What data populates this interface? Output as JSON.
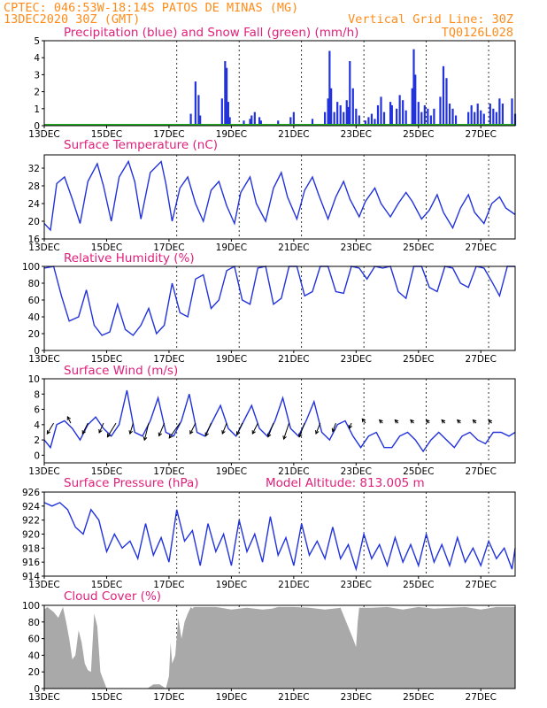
{
  "header": {
    "line1": "CPTEC:  046:53W-18:14S  PATOS DE MINAS (MG)",
    "line2_left": "13DEC2020 30Z (GMT)",
    "line2_right": "Vertical Grid Line: 30Z",
    "code": "TQ0126L028"
  },
  "x_axis": {
    "range_days": [
      13.0,
      28.1
    ],
    "tick_labels": [
      "13DEC",
      "15DEC",
      "17DEC",
      "19DEC",
      "21DEC",
      "23DEC",
      "25DEC",
      "27DEC"
    ],
    "tick_days": [
      13,
      15,
      17,
      19,
      21,
      23,
      25,
      27
    ],
    "vertical_grid_days": [
      17.25,
      19.25,
      21.25,
      23.25,
      25.25,
      27.25
    ]
  },
  "colors": {
    "series": "#2233dd",
    "snow": "#22aa22",
    "cloud": "#a9a9a9",
    "title": "#e0207a",
    "header": "#ff8c1a"
  },
  "chart_data": [
    {
      "id": "precip",
      "type": "bar",
      "title": "Precipitation (blue) and Snow Fall (green) (mm/h)",
      "ylim": [
        0,
        5
      ],
      "yticks": [
        0,
        1,
        2,
        3,
        4,
        5
      ],
      "x_days": [
        17.7,
        17.85,
        17.95,
        18.0,
        18.7,
        18.8,
        18.85,
        18.9,
        18.95,
        19.4,
        19.6,
        19.65,
        19.75,
        19.9,
        19.95,
        20.5,
        20.9,
        21.0,
        21.6,
        22.0,
        22.1,
        22.15,
        22.2,
        22.3,
        22.4,
        22.5,
        22.6,
        22.7,
        22.75,
        22.8,
        22.9,
        23.0,
        23.1,
        23.3,
        23.4,
        23.5,
        23.6,
        23.7,
        23.8,
        23.9,
        24.1,
        24.15,
        24.3,
        24.4,
        24.5,
        24.6,
        24.8,
        24.85,
        24.9,
        25.0,
        25.1,
        25.2,
        25.3,
        25.4,
        25.5,
        25.7,
        25.8,
        25.9,
        26.0,
        26.1,
        26.2,
        26.6,
        26.7,
        26.8,
        26.9,
        27.0,
        27.1,
        27.3,
        27.4,
        27.5,
        27.6,
        27.7,
        28.0,
        28.1
      ],
      "values": [
        0.7,
        2.6,
        1.8,
        0.6,
        1.6,
        3.8,
        3.4,
        1.4,
        0.5,
        0.3,
        0.4,
        0.6,
        0.8,
        0.5,
        0.3,
        0.3,
        0.5,
        0.8,
        0.4,
        0.8,
        1.6,
        4.4,
        2.2,
        0.8,
        1.4,
        1.2,
        0.8,
        1.5,
        1.1,
        3.8,
        2.2,
        1.0,
        0.6,
        0.3,
        0.5,
        0.7,
        0.4,
        1.2,
        1.7,
        0.8,
        1.4,
        1.2,
        1.0,
        1.8,
        1.5,
        0.9,
        2.2,
        4.5,
        3.0,
        1.4,
        0.8,
        1.2,
        1.0,
        0.6,
        1.0,
        1.7,
        3.5,
        2.8,
        1.3,
        1.0,
        0.6,
        0.8,
        1.2,
        0.8,
        1.3,
        0.9,
        0.7,
        1.3,
        1.0,
        0.8,
        1.6,
        1.3,
        1.6,
        0.7
      ],
      "snow_values": "zero"
    },
    {
      "id": "temp",
      "type": "line",
      "title": "Surface Temperature (nC)",
      "ylim": [
        16,
        35
      ],
      "yticks": [
        16,
        20,
        24,
        28,
        32
      ],
      "x_days": [
        13.0,
        13.2,
        13.4,
        13.65,
        13.9,
        14.15,
        14.4,
        14.7,
        14.9,
        15.15,
        15.4,
        15.7,
        15.9,
        16.1,
        16.4,
        16.75,
        16.9,
        17.1,
        17.35,
        17.6,
        17.85,
        18.1,
        18.35,
        18.6,
        18.85,
        19.1,
        19.3,
        19.6,
        19.8,
        20.1,
        20.35,
        20.6,
        20.8,
        21.1,
        21.35,
        21.6,
        21.8,
        22.1,
        22.35,
        22.6,
        22.8,
        23.1,
        23.3,
        23.6,
        23.8,
        24.1,
        24.35,
        24.6,
        24.8,
        25.1,
        25.35,
        25.6,
        25.8,
        26.1,
        26.35,
        26.6,
        26.8,
        27.1,
        27.35,
        27.6,
        27.8,
        28.0,
        28.1
      ],
      "values": [
        19.5,
        18.0,
        28.5,
        30.0,
        25.0,
        19.5,
        29.0,
        33.0,
        28.0,
        20.0,
        30.0,
        33.5,
        29.0,
        20.5,
        31.0,
        33.5,
        28.5,
        20.0,
        27.5,
        30.0,
        24.0,
        20.0,
        27.0,
        29.0,
        23.5,
        19.5,
        26.5,
        30.0,
        24.0,
        20.0,
        27.5,
        31.0,
        25.5,
        20.5,
        27.0,
        30.0,
        26.0,
        20.5,
        25.5,
        29.0,
        25.0,
        21.0,
        24.5,
        27.5,
        24.0,
        21.0,
        24.0,
        26.5,
        24.5,
        20.5,
        22.5,
        26.0,
        22.0,
        18.5,
        23.0,
        26.0,
        22.0,
        19.5,
        24.0,
        25.5,
        23.0,
        22.0,
        21.5
      ]
    },
    {
      "id": "rh",
      "type": "line",
      "title": "Relative Humidity (%)",
      "ylim": [
        0,
        100
      ],
      "yticks": [
        0,
        20,
        40,
        60,
        80,
        100
      ],
      "x_days": [
        13.0,
        13.3,
        13.55,
        13.8,
        14.1,
        14.35,
        14.6,
        14.85,
        15.1,
        15.35,
        15.6,
        15.85,
        16.1,
        16.35,
        16.6,
        16.85,
        17.1,
        17.35,
        17.6,
        17.85,
        18.1,
        18.35,
        18.6,
        18.85,
        19.1,
        19.35,
        19.6,
        19.85,
        20.1,
        20.35,
        20.6,
        20.85,
        21.1,
        21.35,
        21.6,
        21.85,
        22.1,
        22.35,
        22.6,
        22.85,
        23.1,
        23.35,
        23.6,
        23.85,
        24.1,
        24.35,
        24.6,
        24.85,
        25.1,
        25.35,
        25.6,
        25.85,
        26.1,
        26.35,
        26.6,
        26.85,
        27.1,
        27.35,
        27.6,
        27.85,
        28.0,
        28.1
      ],
      "values": [
        98,
        100,
        65,
        35,
        40,
        72,
        30,
        18,
        22,
        55,
        25,
        18,
        30,
        50,
        20,
        30,
        80,
        45,
        40,
        85,
        90,
        50,
        60,
        95,
        100,
        60,
        55,
        98,
        100,
        55,
        62,
        100,
        100,
        65,
        70,
        100,
        100,
        70,
        68,
        100,
        98,
        85,
        100,
        98,
        100,
        70,
        62,
        100,
        100,
        75,
        70,
        100,
        98,
        80,
        75,
        100,
        98,
        82,
        65,
        100,
        100,
        100
      ]
    },
    {
      "id": "wind",
      "type": "line",
      "title": "Surface Wind (m/s)",
      "ylim": [
        -1,
        10
      ],
      "yticks": [
        0,
        2,
        4,
        6,
        8,
        10
      ],
      "x_days": [
        13.0,
        13.2,
        13.4,
        13.65,
        13.9,
        14.15,
        14.4,
        14.65,
        14.9,
        15.15,
        15.4,
        15.65,
        15.9,
        16.15,
        16.4,
        16.65,
        16.9,
        17.15,
        17.4,
        17.65,
        17.9,
        18.15,
        18.4,
        18.65,
        18.9,
        19.15,
        19.4,
        19.65,
        19.9,
        20.15,
        20.4,
        20.65,
        20.9,
        21.15,
        21.4,
        21.65,
        21.9,
        22.15,
        22.4,
        22.65,
        22.9,
        23.15,
        23.4,
        23.65,
        23.9,
        24.15,
        24.4,
        24.65,
        24.9,
        25.15,
        25.4,
        25.65,
        25.9,
        26.15,
        26.4,
        26.65,
        26.9,
        27.15,
        27.4,
        27.65,
        27.9,
        28.1
      ],
      "values": [
        2,
        1,
        4,
        4.5,
        3.5,
        2,
        4,
        5,
        3.5,
        2.5,
        4,
        8.5,
        3,
        2.5,
        4.5,
        7.5,
        3,
        2.5,
        4.5,
        8,
        3,
        2.5,
        4.5,
        6.5,
        3.5,
        2.5,
        4.5,
        6.5,
        3.5,
        2.5,
        4.5,
        7.5,
        3.5,
        2.5,
        4.5,
        7,
        3,
        2,
        4,
        4.5,
        2.5,
        1,
        2.5,
        3,
        1,
        1,
        2.5,
        3,
        2,
        0.5,
        2,
        3,
        2,
        1,
        2.5,
        3,
        2,
        1.5,
        3,
        3,
        2.5,
        3
      ],
      "arrows": [
        {
          "x": 13.3,
          "u": -0.6,
          "v": -1.0
        },
        {
          "x": 13.85,
          "u": -0.3,
          "v": 0.6
        },
        {
          "x": 14.4,
          "u": -0.5,
          "v": -1.0
        },
        {
          "x": 14.9,
          "u": -0.4,
          "v": -0.9
        },
        {
          "x": 15.3,
          "u": -0.8,
          "v": -1.3
        },
        {
          "x": 15.85,
          "u": -0.3,
          "v": -1.0
        },
        {
          "x": 16.35,
          "u": -0.4,
          "v": -1.6
        },
        {
          "x": 16.85,
          "u": -0.5,
          "v": -1.2
        },
        {
          "x": 17.35,
          "u": -1.0,
          "v": -1.4
        },
        {
          "x": 17.85,
          "u": -0.5,
          "v": -1.0
        },
        {
          "x": 18.35,
          "u": -0.5,
          "v": -1.2
        },
        {
          "x": 18.85,
          "u": -0.4,
          "v": -1.0
        },
        {
          "x": 19.35,
          "u": -0.5,
          "v": -1.1
        },
        {
          "x": 19.85,
          "u": -0.5,
          "v": -1.0
        },
        {
          "x": 20.35,
          "u": -0.5,
          "v": -1.3
        },
        {
          "x": 20.85,
          "u": -0.5,
          "v": -1.5
        },
        {
          "x": 21.35,
          "u": -0.5,
          "v": -1.3
        },
        {
          "x": 21.85,
          "u": -0.4,
          "v": -1.0
        },
        {
          "x": 22.35,
          "u": -0.3,
          "v": -0.8
        },
        {
          "x": 22.85,
          "u": -0.2,
          "v": -0.5
        },
        {
          "x": 23.3,
          "u": -0.3,
          "v": 0.4
        },
        {
          "x": 23.85,
          "u": -0.3,
          "v": 0.3
        },
        {
          "x": 24.35,
          "u": -0.3,
          "v": 0.3
        },
        {
          "x": 24.85,
          "u": -0.3,
          "v": 0.3
        },
        {
          "x": 25.35,
          "u": -0.3,
          "v": 0.3
        },
        {
          "x": 25.85,
          "u": -0.3,
          "v": 0.3
        },
        {
          "x": 26.35,
          "u": -0.3,
          "v": 0.3
        },
        {
          "x": 26.85,
          "u": -0.3,
          "v": 0.3
        },
        {
          "x": 27.35,
          "u": -0.3,
          "v": 0.3
        }
      ]
    },
    {
      "id": "press",
      "type": "line",
      "title": "Surface Pressure (hPa)",
      "annotation": "Model Altitude: 813.005 m",
      "ylim": [
        914,
        926
      ],
      "yticks": [
        914,
        916,
        918,
        920,
        922,
        924,
        926
      ],
      "x_days": [
        13.0,
        13.25,
        13.5,
        13.75,
        14.0,
        14.25,
        14.5,
        14.75,
        15.0,
        15.25,
        15.5,
        15.75,
        16.0,
        16.25,
        16.5,
        16.75,
        17.0,
        17.25,
        17.5,
        17.75,
        18.0,
        18.25,
        18.5,
        18.75,
        19.0,
        19.25,
        19.5,
        19.75,
        20.0,
        20.25,
        20.5,
        20.75,
        21.0,
        21.25,
        21.5,
        21.75,
        22.0,
        22.25,
        22.5,
        22.75,
        23.0,
        23.25,
        23.5,
        23.75,
        24.0,
        24.25,
        24.5,
        24.75,
        25.0,
        25.25,
        25.5,
        25.75,
        26.0,
        26.25,
        26.5,
        26.75,
        27.0,
        27.25,
        27.5,
        27.75,
        28.0,
        28.1
      ],
      "values": [
        924.5,
        924,
        924.5,
        923.5,
        921,
        920,
        923.5,
        922,
        917.5,
        920,
        918,
        919,
        916.5,
        921.5,
        917,
        919.5,
        916,
        923.5,
        919,
        920.5,
        915.5,
        921.5,
        917.5,
        920,
        915.5,
        922,
        917.5,
        920,
        916,
        922.5,
        917,
        919.5,
        915.5,
        921.5,
        917,
        919,
        916.5,
        921,
        916.5,
        918.5,
        915,
        920,
        916.5,
        918.5,
        915.5,
        919.5,
        916,
        918.5,
        915.5,
        920,
        916,
        918.5,
        915.5,
        919.5,
        916,
        918,
        915.5,
        919,
        916.5,
        918,
        915,
        918
      ]
    },
    {
      "id": "cloud",
      "type": "area",
      "title": "Cloud Cover (%)",
      "ylim": [
        0,
        100
      ],
      "yticks": [
        0,
        20,
        40,
        60,
        80,
        100
      ],
      "x_days": [
        13.0,
        13.1,
        13.2,
        13.3,
        13.45,
        13.6,
        13.7,
        13.8,
        13.9,
        14.0,
        14.1,
        14.2,
        14.3,
        14.4,
        14.5,
        14.6,
        14.7,
        14.8,
        14.9,
        15.0,
        15.5,
        16.0,
        16.3,
        16.5,
        16.7,
        16.9,
        17.0,
        17.05,
        17.1,
        17.2,
        17.3,
        17.4,
        17.5,
        17.6,
        17.7,
        17.75,
        17.8,
        18.0,
        18.5,
        19.0,
        19.5,
        20.0,
        20.3,
        20.5,
        21.0,
        21.5,
        22.0,
        22.5,
        22.9,
        23.0,
        23.05,
        23.1,
        23.5,
        24.0,
        24.5,
        25.0,
        25.5,
        26.0,
        26.5,
        27.0,
        27.5,
        28.0,
        28.1
      ],
      "values": [
        95,
        98,
        95,
        92,
        85,
        98,
        80,
        60,
        35,
        40,
        70,
        55,
        30,
        22,
        20,
        90,
        75,
        20,
        10,
        0,
        0,
        0,
        0,
        5,
        5,
        0,
        15,
        55,
        30,
        40,
        85,
        60,
        80,
        90,
        98,
        96,
        98,
        98,
        98,
        95,
        97,
        95,
        96,
        98,
        98,
        97,
        95,
        97,
        60,
        50,
        80,
        97,
        97,
        98,
        95,
        98,
        96,
        97,
        98,
        95,
        98,
        98,
        98
      ]
    }
  ]
}
